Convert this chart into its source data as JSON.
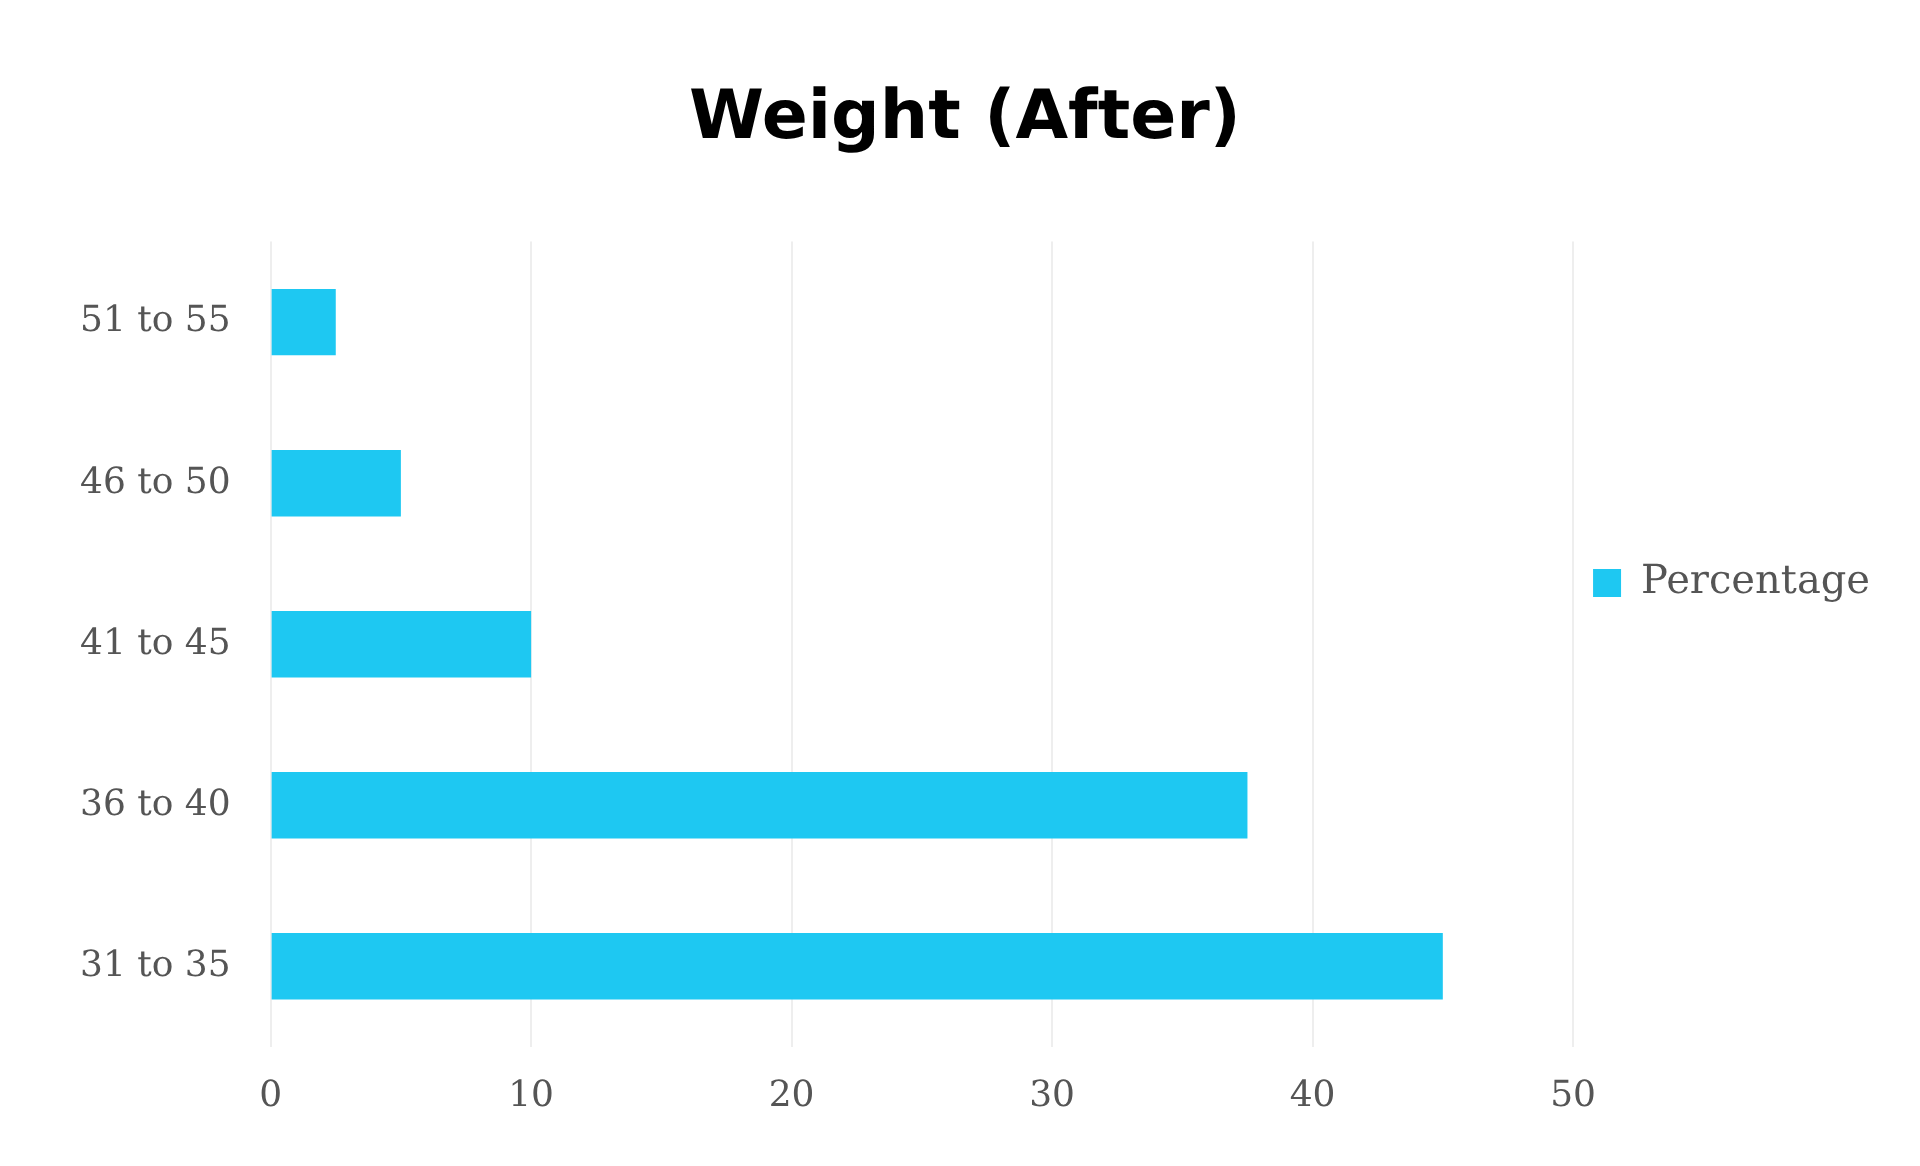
{
  "chart_data": {
    "type": "bar",
    "orientation": "horizontal",
    "title": "Weight (After)",
    "categories": [
      "51 to 55",
      "46 to 50",
      "41 to 45",
      "36 to 40",
      "31 to 35"
    ],
    "series": [
      {
        "name": "Percentage",
        "color": "#1ec8f2",
        "values": [
          2.5,
          5,
          10,
          37.5,
          45
        ]
      }
    ],
    "xlim": [
      0,
      50
    ],
    "xticks": [
      0,
      10,
      20,
      30,
      40,
      50
    ],
    "grid": "x",
    "legend": "right"
  }
}
